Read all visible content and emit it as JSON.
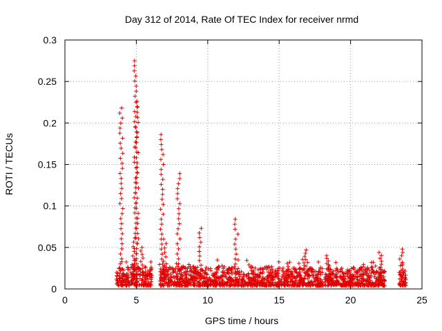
{
  "chart_data": {
    "type": "scatter",
    "title": "Day 312 of 2014, Rate Of TEC Index for receiver nrmd",
    "xlabel": "GPS time / hours",
    "ylabel": "ROTI / TECUs",
    "xlim": [
      0,
      25
    ],
    "ylim": [
      0,
      0.3
    ],
    "x_ticks": [
      "0",
      "5",
      "10",
      "15",
      "20",
      "25"
    ],
    "y_ticks": [
      "0",
      "0.05",
      "0.1",
      "0.15",
      "0.2",
      "0.25",
      "0.3"
    ],
    "grid": true,
    "marker": "+",
    "color": "#e00000",
    "series": [
      {
        "name": "ROTI",
        "segments": [
          {
            "x0": 3.6,
            "x1": 6.1,
            "base": 0.017
          },
          {
            "x0": 6.6,
            "x1": 15.3,
            "base": 0.017
          },
          {
            "x0": 15.3,
            "x1": 22.4,
            "base": 0.016
          },
          {
            "x0": 23.4,
            "x1": 23.9,
            "base": 0.013
          }
        ],
        "peaks": [
          {
            "x": 3.95,
            "y": 0.218
          },
          {
            "x": 4.85,
            "y": 0.062
          },
          {
            "x": 4.95,
            "y": 0.275
          },
          {
            "x": 5.05,
            "y": 0.225
          },
          {
            "x": 5.4,
            "y": 0.05
          },
          {
            "x": 6.8,
            "y": 0.186
          },
          {
            "x": 7.0,
            "y": 0.06
          },
          {
            "x": 7.95,
            "y": 0.139
          },
          {
            "x": 9.5,
            "y": 0.073
          },
          {
            "x": 12.0,
            "y": 0.084
          },
          {
            "x": 16.8,
            "y": 0.047
          },
          {
            "x": 18.4,
            "y": 0.04
          },
          {
            "x": 22.1,
            "y": 0.044
          },
          {
            "x": 23.55,
            "y": 0.048
          }
        ]
      }
    ]
  }
}
